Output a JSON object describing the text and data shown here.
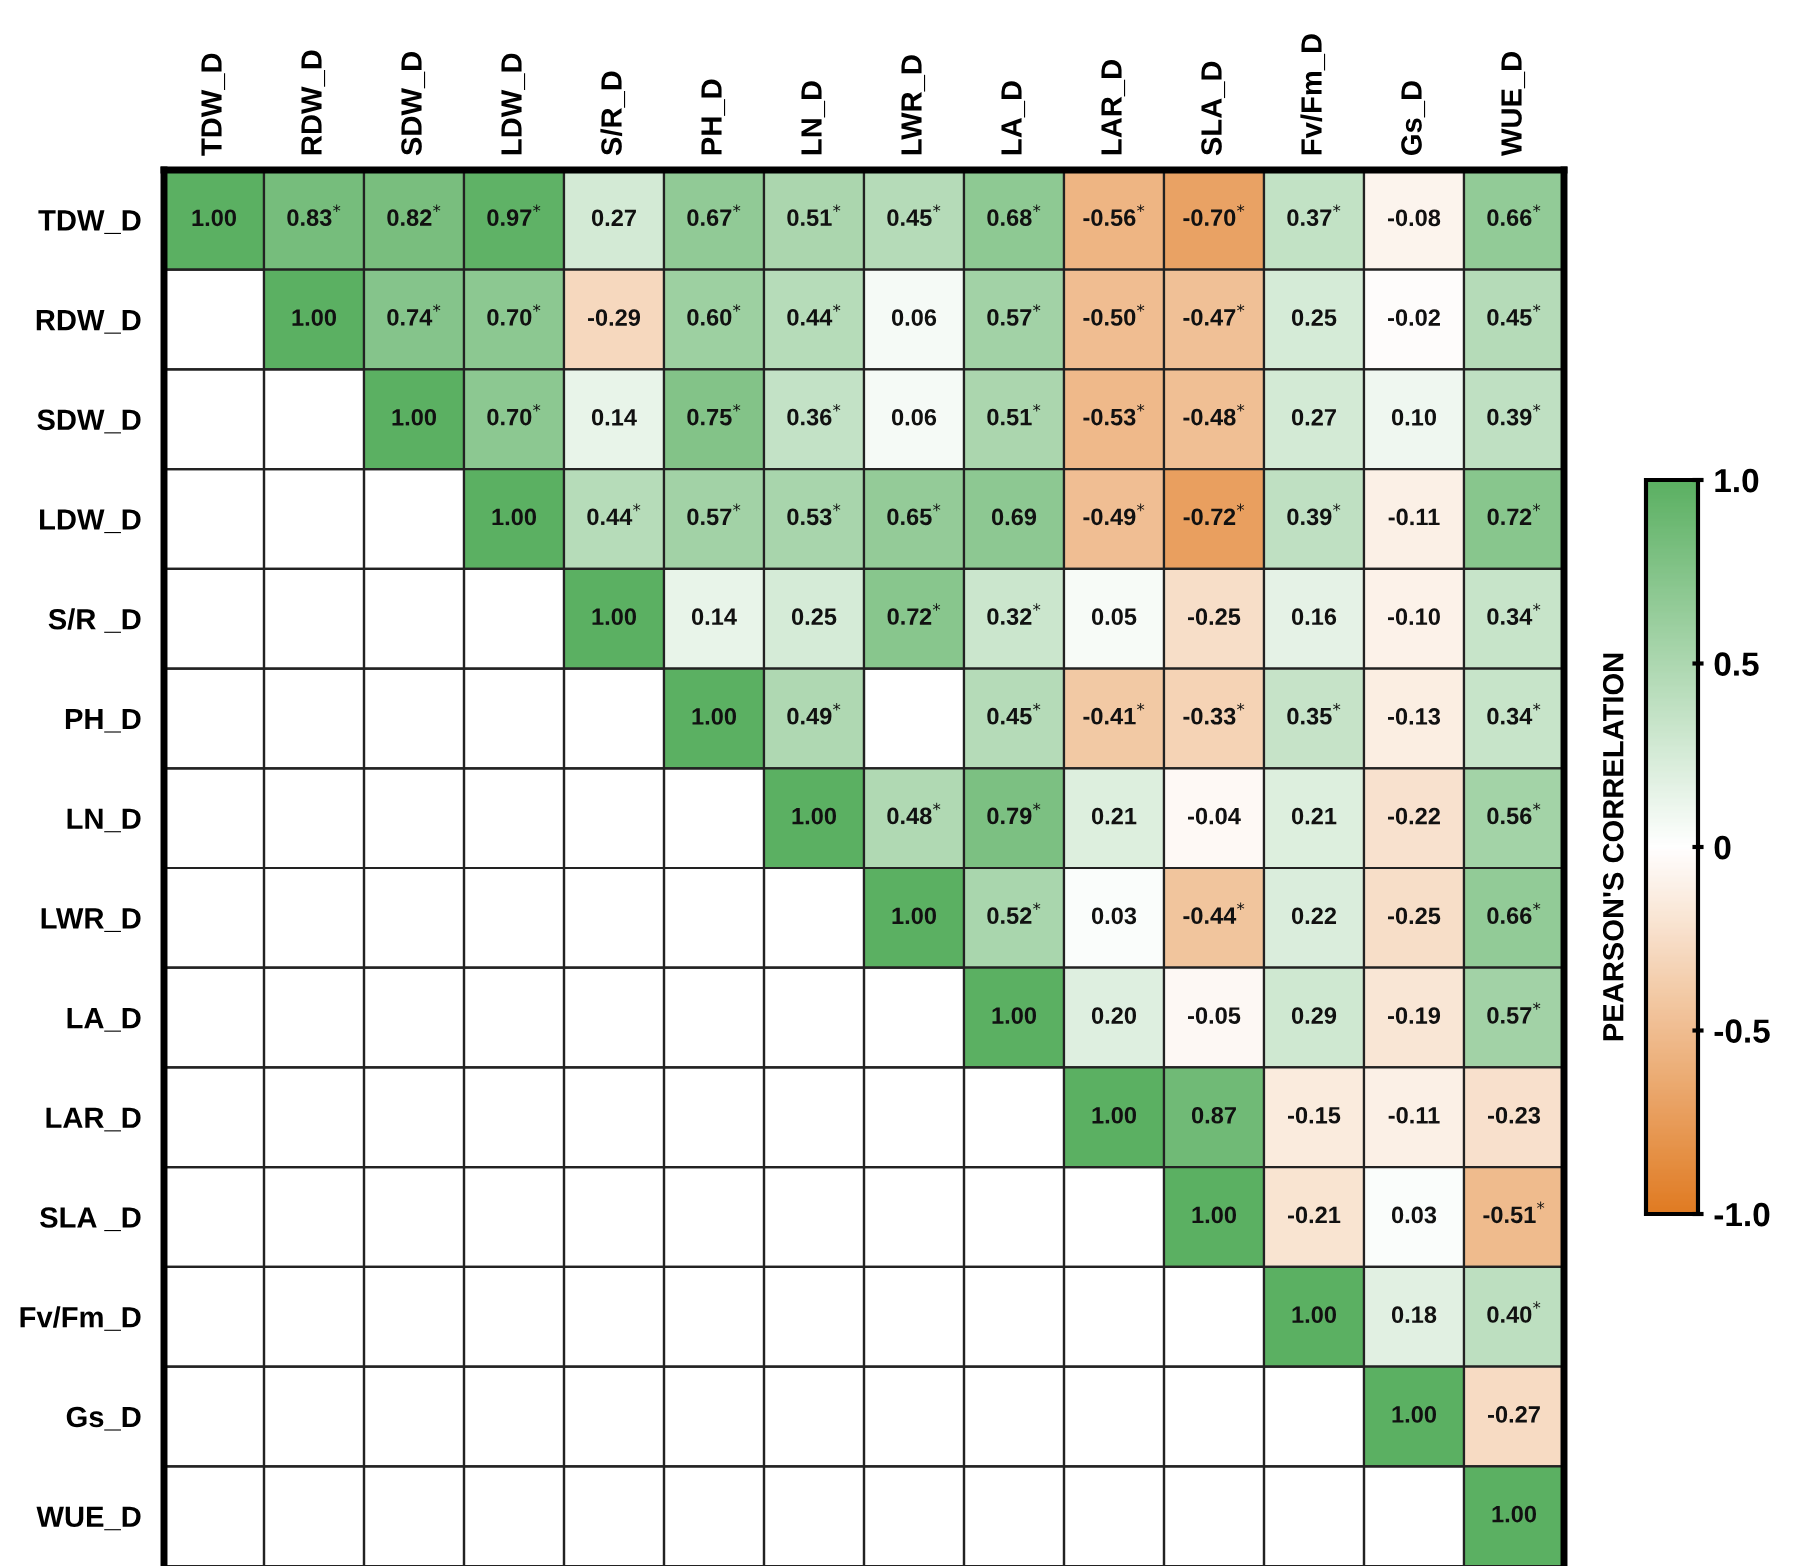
{
  "chart_data": {
    "type": "heatmap",
    "categories": [
      "TDW_D",
      "RDW_D",
      "SDW_D",
      "LDW_D",
      "S/R_D",
      "PH_D",
      "LN_D",
      "LWR_D",
      "LA_D",
      "LAR_D",
      "SLA_D",
      "Fv/Fm_D",
      "Gs_D",
      "WUE_D"
    ],
    "y_categories": [
      "TDW_D",
      "RDW_D",
      "SDW_D",
      "LDW_D",
      "S/R _D",
      "PH_D",
      "LN_D",
      "LWR_D",
      "LA_D",
      "LAR_D",
      "SLA _D",
      "Fv/Fm_D",
      "Gs_D",
      "WUE_D"
    ],
    "cells": [
      [
        1.0,
        0.83,
        0.82,
        0.97,
        0.27,
        0.67,
        0.51,
        0.45,
        0.68,
        -0.56,
        -0.7,
        0.37,
        -0.08,
        0.66
      ],
      [
        null,
        1.0,
        0.74,
        0.7,
        -0.29,
        0.6,
        0.44,
        0.06,
        0.57,
        -0.5,
        -0.47,
        0.25,
        -0.02,
        0.45
      ],
      [
        null,
        null,
        1.0,
        0.7,
        0.14,
        0.75,
        0.36,
        0.06,
        0.51,
        -0.53,
        -0.48,
        0.27,
        0.1,
        0.39
      ],
      [
        null,
        null,
        null,
        1.0,
        0.44,
        0.57,
        0.53,
        0.65,
        0.69,
        -0.49,
        -0.72,
        0.39,
        -0.11,
        0.72
      ],
      [
        null,
        null,
        null,
        null,
        1.0,
        0.14,
        0.25,
        0.72,
        0.32,
        0.05,
        -0.25,
        0.16,
        -0.1,
        0.34
      ],
      [
        null,
        null,
        null,
        null,
        null,
        1.0,
        0.49,
        null,
        0.45,
        -0.41,
        -0.33,
        0.35,
        -0.13,
        0.34
      ],
      [
        null,
        null,
        null,
        null,
        null,
        null,
        1.0,
        0.48,
        0.79,
        0.21,
        -0.04,
        0.21,
        -0.22,
        0.56
      ],
      [
        null,
        null,
        null,
        null,
        null,
        null,
        null,
        1.0,
        0.52,
        0.03,
        -0.44,
        0.22,
        -0.25,
        0.66
      ],
      [
        null,
        null,
        null,
        null,
        null,
        null,
        null,
        null,
        1.0,
        0.2,
        -0.05,
        0.29,
        -0.19,
        0.57
      ],
      [
        null,
        null,
        null,
        null,
        null,
        null,
        null,
        null,
        null,
        1.0,
        0.87,
        -0.15,
        -0.11,
        -0.23
      ],
      [
        null,
        null,
        null,
        null,
        null,
        null,
        null,
        null,
        null,
        null,
        1.0,
        -0.21,
        0.03,
        -0.51
      ],
      [
        null,
        null,
        null,
        null,
        null,
        null,
        null,
        null,
        null,
        null,
        null,
        1.0,
        0.18,
        0.4
      ],
      [
        null,
        null,
        null,
        null,
        null,
        null,
        null,
        null,
        null,
        null,
        null,
        null,
        1.0,
        -0.27
      ],
      [
        null,
        null,
        null,
        null,
        null,
        null,
        null,
        null,
        null,
        null,
        null,
        null,
        null,
        1.0
      ]
    ],
    "cell_labels": [
      [
        "1.00",
        "0.83$^{*}$",
        "0.82$^{*}$",
        "0.97$^{*}$",
        "0.27",
        "0.67$^{*}$",
        "0.51$^{*}$",
        "0.45$^{*}$",
        "0.68$^{*}$",
        "-0.56$^{*}$",
        "-0.70$^{*}$",
        "0.37$^{*}$",
        "-0.08",
        "0.66$^{*}$"
      ],
      [
        null,
        "1.00",
        "0.74$^{*}$",
        "0.70$^{*}$",
        "-0.29",
        "0.60$^{*}$",
        "0.44$^{*}$",
        "0.06",
        "0.57$^{*}$",
        "-0.50$^{*}$",
        "-0.47$^{*}$",
        "0.25",
        "-0.02",
        "0.45$^{*}$"
      ],
      [
        null,
        null,
        "1.00",
        "0.70$^{*}$",
        "0.14",
        "0.75$^{*}$",
        "0.36$^{*}$",
        "0.06",
        "0.51$^{*}$",
        "-0.53$^{*}$",
        "-0.48$^{*}$",
        "0.27",
        "0.10",
        "0.39$^{*}$"
      ],
      [
        null,
        null,
        null,
        "1.00",
        "0.44$^{*}$",
        "0.57$^{*}$",
        "0.53$^{*}$",
        "0.65$^{*}$",
        "0.69",
        "-0.49$^{*}$",
        "-0.72$^{*}$",
        "0.39$^{*}$",
        "-0.11",
        "0.72$^{*}$"
      ],
      [
        null,
        null,
        null,
        null,
        "1.00",
        "0.14",
        "0.25",
        "0.72$^{*}$",
        "0.32$^{*}$",
        "0.05",
        "-0.25",
        "0.16",
        "-0.10",
        "0.34$^{*}$"
      ],
      [
        null,
        null,
        null,
        null,
        null,
        "1.00",
        "0.49$^{*}$",
        null,
        "0.45$^{*}$",
        "-0.41$^{*}$",
        "-0.33$^{*}$",
        "0.35$^{*}$",
        "-0.13",
        "0.34$^{*}$"
      ],
      [
        null,
        null,
        null,
        null,
        null,
        null,
        "1.00",
        "0.48$^{*}$",
        "0.79$^{*}$",
        "0.21",
        "-0.04",
        "0.21",
        "-0.22",
        "0.56$^{*}$"
      ],
      [
        null,
        null,
        null,
        null,
        null,
        null,
        null,
        "1.00",
        "0.52$^{*}$",
        "0.03",
        "-0.44$^{*}$",
        "0.22",
        "-0.25",
        "0.66$^{*}$"
      ],
      [
        null,
        null,
        null,
        null,
        null,
        null,
        null,
        null,
        "1.00",
        "0.20",
        "-0.05",
        "0.29",
        "-0.19",
        "0.57$^{*}$"
      ],
      [
        null,
        null,
        null,
        null,
        null,
        null,
        null,
        null,
        null,
        "1.00",
        "0.87",
        "-0.15",
        "-0.11",
        "-0.23"
      ],
      [
        null,
        null,
        null,
        null,
        null,
        null,
        null,
        null,
        null,
        null,
        "1.00",
        "-0.21",
        "0.03",
        "-0.51$^{*}$"
      ],
      [
        null,
        null,
        null,
        null,
        null,
        null,
        null,
        null,
        null,
        null,
        null,
        "1.00",
        "0.18",
        "0.40$^{*}$"
      ],
      [
        null,
        null,
        null,
        null,
        null,
        null,
        null,
        null,
        null,
        null,
        null,
        null,
        "1.00",
        "-0.27"
      ],
      [
        null,
        null,
        null,
        null,
        null,
        null,
        null,
        null,
        null,
        null,
        null,
        null,
        null,
        "1.00"
      ]
    ],
    "colors": [
      "#e07b22",
      "#ffffff",
      "#5bb062"
    ],
    "clim": [
      -1.0,
      1.0
    ],
    "cticks": [
      {
        "value": -1.0,
        "label": "-1.0"
      },
      {
        "value": -0.5,
        "label": "-0.5"
      },
      {
        "value": 0,
        "label": "0"
      },
      {
        "value": 0.5,
        "label": "0.5"
      },
      {
        "value": 1.0,
        "label": "1.0"
      }
    ],
    "clabel": "PEARSON'S CORRELATION"
  }
}
